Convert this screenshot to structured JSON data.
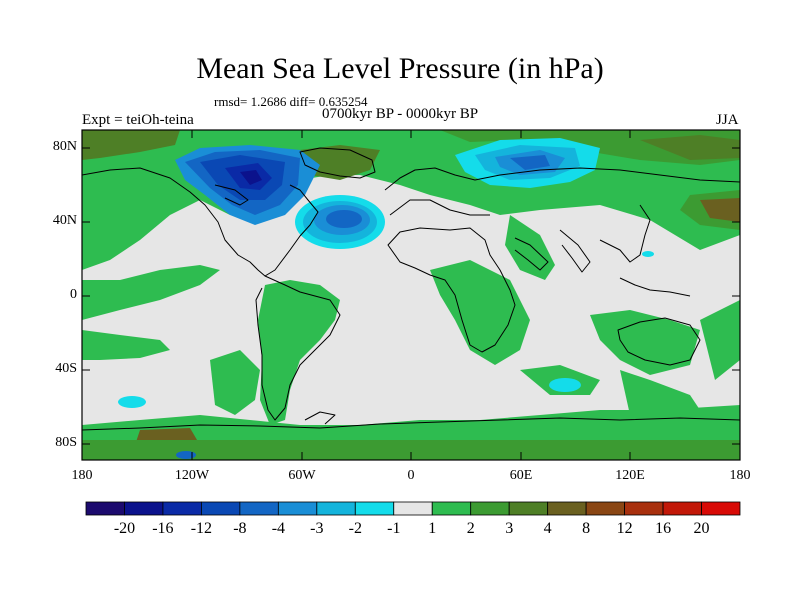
{
  "map": {
    "title": "Mean Sea Level Pressure (in hPa)",
    "stats": "rmsd= 1.2686 diff= 0.635254",
    "period": "0700kyr BP - 0000kyr BP",
    "experiment": "Expt = teiOh-teina",
    "season": "JJA",
    "lat_labels": [
      "80N",
      "40N",
      "0",
      "40S",
      "80S"
    ],
    "lon_labels": [
      "180",
      "120W",
      "60W",
      "0",
      "60E",
      "120E",
      "180"
    ]
  },
  "colorbar": {
    "labels": [
      "-20",
      "-16",
      "-12",
      "-8",
      "-4",
      "-3",
      "-2",
      "-1",
      "1",
      "2",
      "3",
      "4",
      "8",
      "12",
      "16",
      "20"
    ],
    "colors": [
      "#1c0a6e",
      "#0b128c",
      "#0a2aa6",
      "#0a48b4",
      "#1366c4",
      "#1a8ed6",
      "#14b4dc",
      "#14dcea",
      "#e6e6e6",
      "#2ebc50",
      "#3c9b32",
      "#4e7f26",
      "#6a6020",
      "#8a4614",
      "#a8300e",
      "#c21808",
      "#d80a06"
    ]
  }
}
